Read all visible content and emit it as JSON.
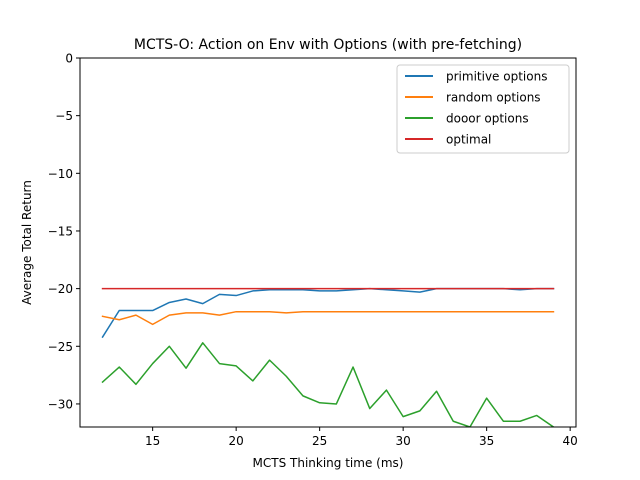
{
  "chart_data": {
    "type": "line",
    "title": "MCTS-O: Action on Env with Options (with pre-fetching)",
    "xlabel": "MCTS Thinking time (ms)",
    "ylabel": "Average Total Return",
    "xlim": [
      10.65,
      40.35
    ],
    "ylim": [
      -32,
      0
    ],
    "xticks": [
      15,
      20,
      25,
      30,
      35,
      40
    ],
    "yticks": [
      0,
      -5,
      -10,
      -15,
      -20,
      -25,
      -30
    ],
    "grid": false,
    "legend_position": "top-right",
    "x": [
      12,
      13,
      14,
      15,
      16,
      17,
      18,
      19,
      20,
      21,
      22,
      23,
      24,
      25,
      26,
      27,
      28,
      29,
      30,
      31,
      32,
      33,
      34,
      35,
      36,
      37,
      38,
      39
    ],
    "series": [
      {
        "name": "primitive options",
        "color": "#1f77b4",
        "values": [
          -24.2,
          -21.9,
          -21.9,
          -21.9,
          -21.2,
          -20.9,
          -21.3,
          -20.5,
          -20.6,
          -20.2,
          -20.1,
          -20.1,
          -20.1,
          -20.2,
          -20.2,
          -20.1,
          -20.0,
          -20.1,
          -20.2,
          -20.3,
          -20.0,
          -20.0,
          -20.0,
          -20.0,
          -20.0,
          -20.1,
          -20.0,
          -20.0
        ]
      },
      {
        "name": "random options",
        "color": "#ff7f0e",
        "values": [
          -22.4,
          -22.7,
          -22.3,
          -23.1,
          -22.3,
          -22.1,
          -22.1,
          -22.3,
          -22.0,
          -22.0,
          -22.0,
          -22.1,
          -22.0,
          -22.0,
          -22.0,
          -22.0,
          -22.0,
          -22.0,
          -22.0,
          -22.0,
          -22.0,
          -22.0,
          -22.0,
          -22.0,
          -22.0,
          -22.0,
          -22.0,
          -22.0
        ]
      },
      {
        "name": "dooor options",
        "color": "#2ca02c",
        "values": [
          -28.1,
          -26.8,
          -28.3,
          -26.5,
          -25.0,
          -26.9,
          -24.7,
          -26.5,
          -26.7,
          -28.0,
          -26.2,
          -27.6,
          -29.3,
          -29.9,
          -30.0,
          -26.8,
          -30.4,
          -28.8,
          -31.1,
          -30.6,
          -28.9,
          -31.5,
          -32.0,
          -29.5,
          -31.5,
          -31.5,
          -31.0,
          -32.0
        ]
      },
      {
        "name": "optimal",
        "color": "#d62728",
        "values": [
          -20,
          -20,
          -20,
          -20,
          -20,
          -20,
          -20,
          -20,
          -20,
          -20,
          -20,
          -20,
          -20,
          -20,
          -20,
          -20,
          -20,
          -20,
          -20,
          -20,
          -20,
          -20,
          -20,
          -20,
          -20,
          -20,
          -20,
          -20
        ]
      }
    ]
  }
}
